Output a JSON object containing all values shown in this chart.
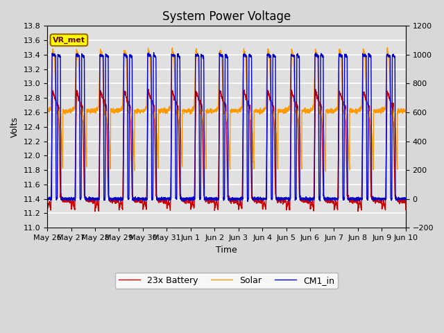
{
  "title": "System Power Voltage",
  "xlabel": "Time",
  "ylabel_left": "Volts",
  "ylim_left": [
    11.0,
    13.8
  ],
  "ylim_right": [
    -200,
    1200
  ],
  "xtick_labels": [
    "May 26",
    "May 27",
    "May 28",
    "May 29",
    "May 30",
    "May 31",
    "Jun 1",
    "Jun 2",
    "Jun 3",
    "Jun 4",
    "Jun 5",
    "Jun 6",
    "Jun 7",
    "Jun 8",
    "Jun 9",
    "Jun 10"
  ],
  "num_days": 15,
  "background_color": "#d8d8d8",
  "plot_bg_color": "#e0e0e0",
  "grid_color": "#ffffff",
  "legend_items": [
    "23x Battery",
    "Solar",
    "CM1_in"
  ],
  "legend_colors": [
    "#cc0000",
    "#ff9900",
    "#0000cc"
  ],
  "vr_met_label": "VR_met",
  "vr_met_color": "#ffff00",
  "vr_met_border": "#996600",
  "title_fontsize": 12,
  "axis_fontsize": 9,
  "tick_fontsize": 8
}
